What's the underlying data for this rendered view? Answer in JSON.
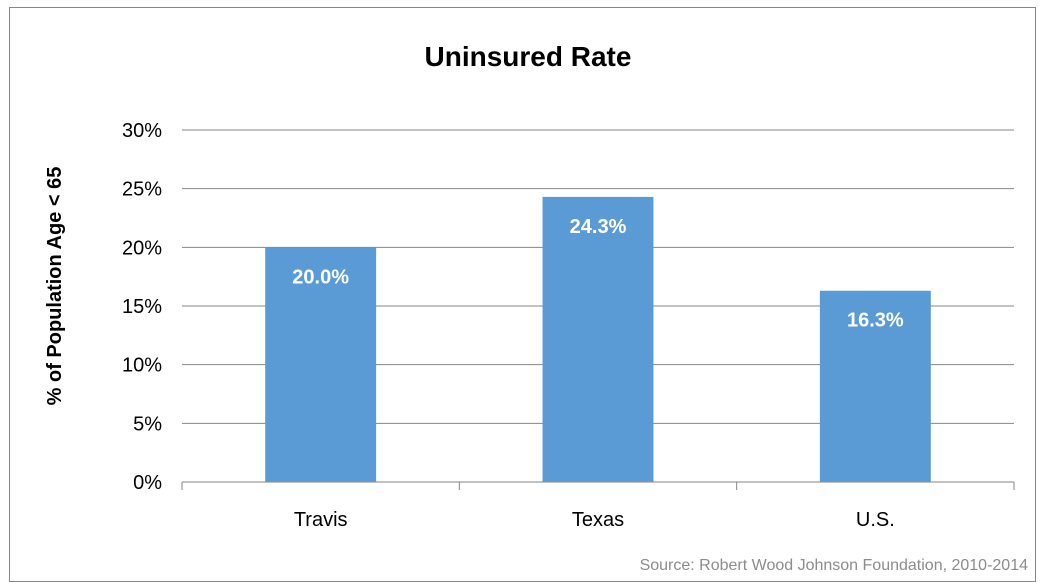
{
  "chart_data": {
    "type": "bar",
    "title": "Uninsured Rate",
    "ylabel": "% of Population  Age < 65",
    "xlabel": "",
    "categories": [
      "Travis",
      "Texas",
      "U.S."
    ],
    "values": [
      20.0,
      24.3,
      16.3
    ],
    "data_labels": [
      "20.0%",
      "24.3%",
      "16.3%"
    ],
    "ylim": [
      0,
      30
    ],
    "y_ticks": [
      0,
      5,
      10,
      15,
      20,
      25,
      30
    ],
    "y_tick_labels": [
      "0%",
      "5%",
      "10%",
      "15%",
      "20%",
      "25%",
      "30%"
    ],
    "grid": true,
    "legend": "none",
    "bar_color": "#5b9bd5",
    "source": "Source: Robert Wood Johnson Foundation, 2010-2014"
  }
}
